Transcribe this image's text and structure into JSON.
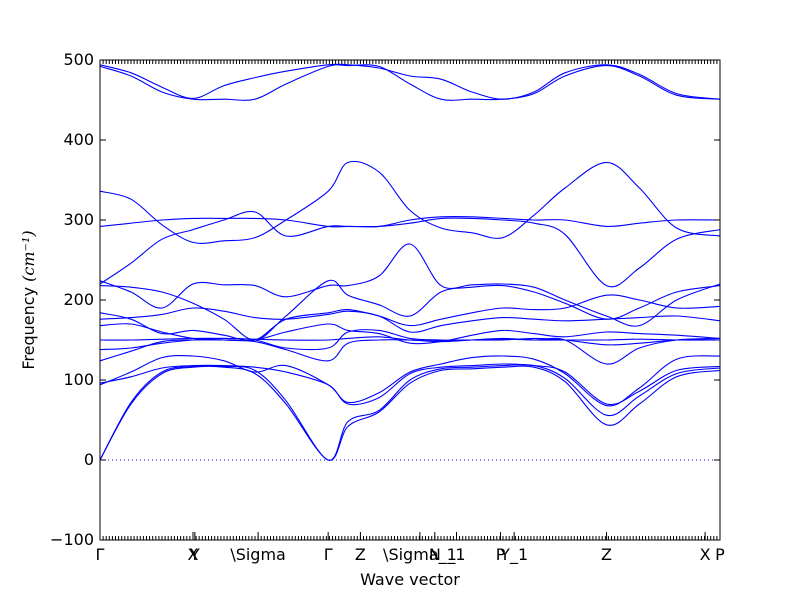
{
  "chart_data": {
    "type": "line",
    "xlabel": "Wave vector",
    "ylabel": "Frequency",
    "ylabel_unit": "(cm⁻¹)",
    "ylim": [
      -100,
      500
    ],
    "yticks": [
      -100,
      0,
      100,
      200,
      300,
      400,
      500
    ],
    "xlim": [
      0,
      1
    ],
    "grid": false,
    "zero_line": 0,
    "line_color": "#0000ff",
    "xticks": [
      {
        "x": 0.0,
        "label": "Γ"
      },
      {
        "x": 0.15,
        "label": "X"
      },
      {
        "x": 0.153,
        "label": "Y"
      },
      {
        "x": 0.255,
        "label": "\\Sigma"
      },
      {
        "x": 0.368,
        "label": "Γ"
      },
      {
        "x": 0.42,
        "label": "Z"
      },
      {
        "x": 0.516,
        "label": "\\Sigma_1"
      },
      {
        "x": 0.54,
        "label": "N"
      },
      {
        "x": 0.575,
        "label": "_1"
      },
      {
        "x": 0.646,
        "label": "P"
      },
      {
        "x": 0.668,
        "label": "Y_1"
      },
      {
        "x": 0.817,
        "label": "Z"
      },
      {
        "x": 0.976,
        "label": "X"
      },
      {
        "x": 1.0,
        "label": "P"
      }
    ],
    "series": [
      {
        "x": [
          0,
          0.05,
          0.1,
          0.15,
          0.2,
          0.25,
          0.3,
          0.368,
          0.4,
          0.45,
          0.5,
          0.55,
          0.6,
          0.65,
          0.7,
          0.75,
          0.817,
          0.87,
          0.93,
          1.0
        ],
        "values": [
          0,
          70,
          108,
          116,
          116,
          108,
          70,
          0,
          42,
          60,
          96,
          112,
          114,
          116,
          116,
          98,
          44,
          70,
          104,
          112
        ]
      },
      {
        "x": [
          0,
          0.05,
          0.1,
          0.15,
          0.2,
          0.25,
          0.3,
          0.368,
          0.4,
          0.45,
          0.5,
          0.55,
          0.6,
          0.65,
          0.7,
          0.75,
          0.817,
          0.87,
          0.93,
          1.0
        ],
        "values": [
          0,
          72,
          110,
          117,
          117,
          112,
          74,
          0,
          48,
          62,
          100,
          114,
          116,
          118,
          118,
          102,
          56,
          80,
          108,
          115
        ]
      },
      {
        "x": [
          0,
          0.05,
          0.1,
          0.15,
          0.2,
          0.25,
          0.3,
          0.368,
          0.4,
          0.45,
          0.5,
          0.55,
          0.6,
          0.65,
          0.7,
          0.75,
          0.817,
          0.87,
          0.93,
          1.0
        ],
        "values": [
          96,
          104,
          115,
          118,
          118,
          116,
          110,
          94,
          70,
          78,
          108,
          116,
          118,
          120,
          118,
          110,
          70,
          86,
          112,
          117
        ]
      },
      {
        "x": [
          0,
          0.05,
          0.1,
          0.15,
          0.2,
          0.25,
          0.3,
          0.368,
          0.4,
          0.45,
          0.5,
          0.55,
          0.6,
          0.65,
          0.7,
          0.75,
          0.817,
          0.87,
          0.93,
          1.0
        ],
        "values": [
          94,
          110,
          128,
          130,
          124,
          110,
          118,
          94,
          72,
          84,
          110,
          120,
          128,
          130,
          126,
          108,
          68,
          90,
          126,
          130
        ]
      },
      {
        "x": [
          0,
          0.05,
          0.1,
          0.15,
          0.2,
          0.25,
          0.3,
          0.368,
          0.4,
          0.45,
          0.5,
          0.55,
          0.6,
          0.65,
          0.7,
          0.75,
          0.817,
          0.87,
          0.93,
          1.0
        ],
        "values": [
          124,
          136,
          148,
          150,
          150,
          148,
          138,
          124,
          146,
          150,
          150,
          148,
          150,
          152,
          150,
          150,
          120,
          140,
          150,
          152
        ]
      },
      {
        "x": [
          0,
          0.05,
          0.1,
          0.15,
          0.2,
          0.25,
          0.3,
          0.368,
          0.4,
          0.45,
          0.5,
          0.55,
          0.6,
          0.65,
          0.7,
          0.75,
          0.817,
          0.87,
          0.93,
          1.0
        ],
        "values": [
          138,
          140,
          146,
          150,
          152,
          150,
          140,
          140,
          160,
          162,
          152,
          150,
          150,
          150,
          152,
          150,
          144,
          146,
          150,
          152
        ]
      },
      {
        "x": [
          0,
          0.05,
          0.1,
          0.15,
          0.2,
          0.25,
          0.3,
          0.368,
          0.4,
          0.45,
          0.5,
          0.55,
          0.6,
          0.65,
          0.7,
          0.75,
          0.817,
          0.87,
          0.93,
          1.0
        ],
        "values": [
          150,
          150,
          151,
          152,
          152,
          151,
          150,
          150,
          152,
          154,
          150,
          149,
          150,
          151,
          150,
          150,
          150,
          151,
          150,
          150
        ]
      },
      {
        "x": [
          0,
          0.05,
          0.1,
          0.15,
          0.2,
          0.25,
          0.3,
          0.368,
          0.4,
          0.45,
          0.5,
          0.55,
          0.6,
          0.65,
          0.7,
          0.75,
          0.817,
          0.87,
          0.93,
          1.0
        ],
        "values": [
          168,
          170,
          160,
          152,
          150,
          150,
          160,
          170,
          162,
          158,
          146,
          148,
          156,
          162,
          158,
          154,
          160,
          158,
          156,
          152
        ]
      },
      {
        "x": [
          0,
          0.05,
          0.1,
          0.15,
          0.2,
          0.25,
          0.3,
          0.368,
          0.4,
          0.45,
          0.5,
          0.55,
          0.6,
          0.65,
          0.7,
          0.75,
          0.817,
          0.87,
          0.93,
          1.0
        ],
        "values": [
          176,
          178,
          182,
          190,
          186,
          178,
          176,
          182,
          186,
          180,
          160,
          168,
          174,
          178,
          176,
          174,
          176,
          178,
          180,
          174
        ]
      },
      {
        "x": [
          0,
          0.05,
          0.1,
          0.15,
          0.2,
          0.25,
          0.3,
          0.368,
          0.4,
          0.45,
          0.5,
          0.55,
          0.6,
          0.65,
          0.7,
          0.75,
          0.817,
          0.87,
          0.93,
          1.0
        ],
        "values": [
          184,
          176,
          158,
          162,
          156,
          150,
          176,
          184,
          188,
          180,
          168,
          176,
          184,
          190,
          188,
          190,
          206,
          200,
          190,
          192
        ]
      },
      {
        "x": [
          0,
          0.05,
          0.1,
          0.15,
          0.2,
          0.25,
          0.3,
          0.368,
          0.4,
          0.45,
          0.5,
          0.55,
          0.6,
          0.65,
          0.7,
          0.75,
          0.817,
          0.87,
          0.93,
          1.0
        ],
        "values": [
          218,
          216,
          210,
          196,
          176,
          150,
          180,
          224,
          206,
          194,
          180,
          210,
          216,
          218,
          210,
          196,
          176,
          190,
          210,
          218
        ]
      },
      {
        "x": [
          0,
          0.05,
          0.1,
          0.15,
          0.2,
          0.25,
          0.3,
          0.368,
          0.4,
          0.45,
          0.5,
          0.55,
          0.6,
          0.65,
          0.7,
          0.75,
          0.817,
          0.87,
          0.93,
          1.0
        ],
        "values": [
          224,
          210,
          190,
          220,
          219,
          218,
          204,
          218,
          218,
          230,
          270,
          218,
          219,
          220,
          216,
          200,
          180,
          168,
          200,
          220
        ]
      },
      {
        "x": [
          0,
          0.05,
          0.1,
          0.15,
          0.2,
          0.25,
          0.3,
          0.368,
          0.4,
          0.45,
          0.5,
          0.55,
          0.6,
          0.65,
          0.7,
          0.75,
          0.817,
          0.87,
          0.93,
          1.0
        ],
        "values": [
          220,
          246,
          276,
          288,
          300,
          310,
          280,
          292,
          292,
          292,
          296,
          302,
          302,
          300,
          296,
          282,
          218,
          240,
          276,
          288
        ]
      },
      {
        "x": [
          0,
          0.05,
          0.1,
          0.15,
          0.2,
          0.25,
          0.3,
          0.368,
          0.4,
          0.45,
          0.5,
          0.55,
          0.6,
          0.65,
          0.7,
          0.75,
          0.817,
          0.87,
          0.93,
          1.0
        ],
        "values": [
          292,
          296,
          300,
          302,
          302,
          302,
          300,
          292,
          292,
          292,
          300,
          304,
          304,
          302,
          300,
          300,
          292,
          296,
          300,
          300
        ]
      },
      {
        "x": [
          0,
          0.05,
          0.1,
          0.15,
          0.2,
          0.25,
          0.3,
          0.368,
          0.4,
          0.45,
          0.5,
          0.55,
          0.6,
          0.65,
          0.7,
          0.75,
          0.817,
          0.87,
          0.93,
          1.0
        ],
        "values": [
          336,
          326,
          294,
          272,
          274,
          278,
          300,
          336,
          372,
          360,
          312,
          290,
          284,
          278,
          306,
          340,
          372,
          340,
          290,
          280
        ]
      },
      {
        "x": [
          0,
          0.05,
          0.1,
          0.15,
          0.2,
          0.25,
          0.3,
          0.368,
          0.4,
          0.45,
          0.5,
          0.55,
          0.6,
          0.65,
          0.7,
          0.75,
          0.817,
          0.87,
          0.93,
          1.0
        ],
        "values": [
          492,
          480,
          460,
          451,
          451,
          451,
          470,
          492,
          493,
          492,
          470,
          451,
          451,
          451,
          458,
          480,
          493,
          480,
          456,
          451
        ]
      },
      {
        "x": [
          0,
          0.05,
          0.1,
          0.15,
          0.2,
          0.25,
          0.3,
          0.368,
          0.4,
          0.45,
          0.5,
          0.55,
          0.6,
          0.65,
          0.7,
          0.75,
          0.817,
          0.87,
          0.93,
          1.0
        ],
        "values": [
          494,
          484,
          466,
          452,
          468,
          478,
          486,
          494,
          494,
          490,
          480,
          476,
          460,
          451,
          460,
          484,
          494,
          482,
          458,
          451
        ]
      }
    ]
  }
}
